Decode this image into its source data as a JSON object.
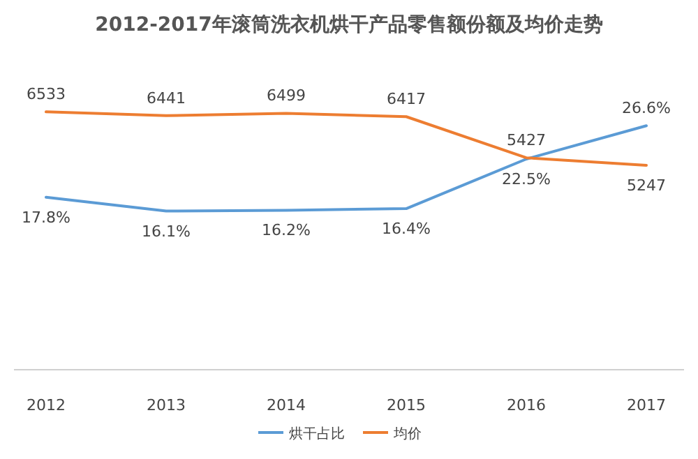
{
  "chart_data": {
    "type": "line",
    "title": "2012-2017年滚筒洗衣机烘干产品零售额份额及均价走势",
    "categories": [
      "2012",
      "2013",
      "2014",
      "2015",
      "2016",
      "2017"
    ],
    "series": [
      {
        "name": "烘干占比",
        "color": "#5b9bd5",
        "axis": "y2",
        "values": [
          17.8,
          16.1,
          16.2,
          16.4,
          22.5,
          26.6
        ],
        "value_labels": [
          "17.8%",
          "16.1%",
          "16.2%",
          "16.4%",
          "22.5%",
          "26.6%"
        ]
      },
      {
        "name": "均价",
        "color": "#ed7d31",
        "axis": "y",
        "values": [
          6533,
          6441,
          6499,
          6417,
          5427,
          5247
        ],
        "value_labels": [
          "6533",
          "6441",
          "6499",
          "6417",
          "5427",
          "5247"
        ]
      }
    ],
    "line_style": "solid",
    "legend": "bottom"
  }
}
